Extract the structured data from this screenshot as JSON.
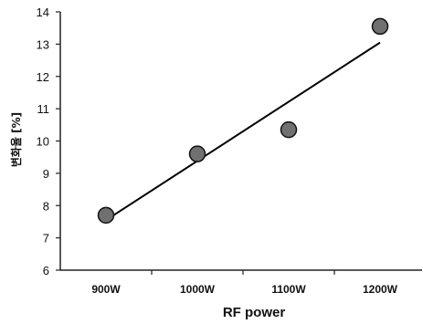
{
  "chart_data": {
    "type": "scatter",
    "title": "",
    "xlabel": "RF power",
    "ylabel": "변화율 [%]",
    "categories": [
      "900W",
      "1000W",
      "1100W",
      "1200W"
    ],
    "x": [
      900,
      1000,
      1100,
      1200
    ],
    "ylim": [
      6,
      14
    ],
    "yticks": [
      6,
      7,
      8,
      9,
      10,
      11,
      12,
      13,
      14
    ],
    "grid": false,
    "legend": "none",
    "series": [
      {
        "values": [
          7.7,
          9.6,
          10.35,
          13.55
        ],
        "marker": "circle",
        "color": "#707070"
      }
    ],
    "trendline": {
      "type": "linear",
      "start": [
        900,
        7.55
      ],
      "end": [
        1200,
        13.05
      ],
      "color": "#000000"
    }
  }
}
